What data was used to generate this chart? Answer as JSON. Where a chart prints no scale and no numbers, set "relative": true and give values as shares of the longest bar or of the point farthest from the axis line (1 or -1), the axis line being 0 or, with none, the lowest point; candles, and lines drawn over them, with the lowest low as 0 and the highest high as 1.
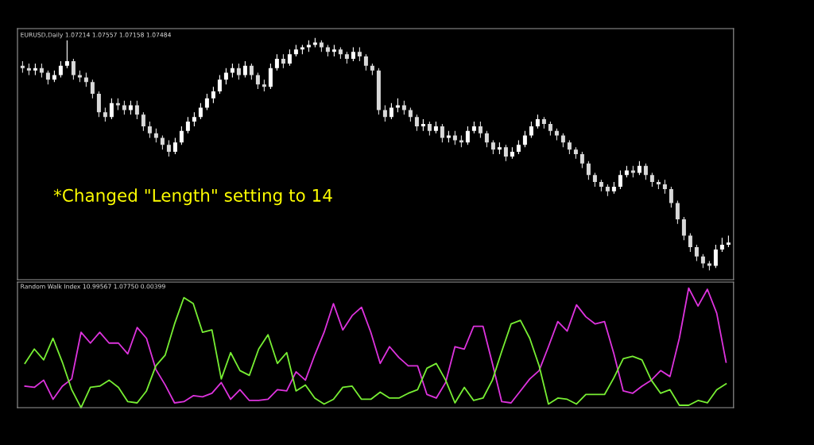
{
  "chart_data": [
    {
      "type": "candlestick",
      "title": "EURUSD,Daily 1.07214 1.07557 1.07158 1.07484",
      "annotations": [
        "*Changed \"Length\" setting to 14"
      ],
      "relative": true,
      "colors": [
        "#d9d9d9",
        "#d9d9d9",
        "#ffffff",
        "#d9d9d9",
        "#d9d9d9",
        "#ffffff",
        "#ffffff",
        "#ffffff",
        "#d9d9d9",
        "#d9d9d9",
        "#d9d9d9",
        "#d9d9d9",
        "#d9d9d9",
        "#d9d9d9",
        "#ffffff",
        "#d9d9d9",
        "#d9d9d9",
        "#ffffff",
        "#d9d9d9",
        "#d9d9d9",
        "#d9d9d9",
        "#d9d9d9",
        "#d9d9d9",
        "#d9d9d9",
        "#ffffff",
        "#ffffff",
        "#ffffff",
        "#ffffff",
        "#ffffff",
        "#ffffff",
        "#ffffff",
        "#ffffff",
        "#ffffff",
        "#ffffff",
        "#d9d9d9",
        "#ffffff",
        "#d9d9d9",
        "#d9d9d9",
        "#d9d9d9",
        "#ffffff",
        "#ffffff",
        "#d9d9d9",
        "#ffffff",
        "#ffffff",
        "#ffffff",
        "#ffffff",
        "#ffffff",
        "#d9d9d9",
        "#d9d9d9",
        "#ffffff",
        "#d9d9d9",
        "#d9d9d9",
        "#ffffff",
        "#d9d9d9",
        "#d9d9d9",
        "#d9d9d9",
        "#d9d9d9",
        "#d9d9d9",
        "#ffffff",
        "#ffffff",
        "#d9d9d9",
        "#d9d9d9",
        "#d9d9d9",
        "#ffffff",
        "#d9d9d9",
        "#ffffff",
        "#d9d9d9",
        "#ffffff",
        "#d9d9d9",
        "#d9d9d9",
        "#ffffff",
        "#ffffff",
        "#d9d9d9",
        "#d9d9d9",
        "#d9d9d9",
        "#ffffff",
        "#d9d9d9",
        "#ffffff",
        "#ffffff",
        "#ffffff",
        "#ffffff",
        "#ffffff",
        "#d9d9d9",
        "#d9d9d9",
        "#d9d9d9",
        "#d9d9d9",
        "#d9d9d9",
        "#d9d9d9",
        "#d9d9d9",
        "#d9d9d9",
        "#d9d9d9",
        "#d9d9d9",
        "#d9d9d9",
        "#ffffff",
        "#ffffff",
        "#ffffff",
        "#d9d9d9",
        "#ffffff",
        "#d9d9d9",
        "#d9d9d9",
        "#d9d9d9",
        "#d9d9d9",
        "#d9d9d9",
        "#d9d9d9",
        "#d9d9d9",
        "#d9d9d9",
        "#d9d9d9",
        "#d9d9d9",
        "#d9d9d9",
        "#ffffff",
        "#ffffff",
        "#ffffff"
      ],
      "categories": [
        null,
        null,
        null,
        null,
        null,
        null,
        null,
        null,
        null,
        null,
        null,
        null,
        null,
        null,
        null,
        null,
        null,
        null,
        null,
        null,
        null,
        null,
        null,
        null,
        null,
        null,
        null,
        null,
        null,
        null,
        null,
        null,
        null,
        null,
        null,
        null,
        null,
        null,
        null,
        null,
        null,
        null,
        null,
        null,
        null,
        null,
        null,
        null,
        null,
        null,
        null,
        null,
        null,
        null,
        null,
        null,
        null,
        null,
        null,
        null,
        null,
        null,
        null,
        null,
        null,
        null,
        null,
        null,
        null,
        null,
        null,
        null,
        null,
        null,
        null,
        null,
        null,
        null,
        null,
        null,
        null,
        null,
        null,
        null,
        null,
        null,
        null,
        null,
        null,
        null,
        null,
        null,
        null,
        null,
        null,
        null,
        null,
        null,
        null,
        null,
        null,
        null,
        null,
        null,
        null,
        null,
        null,
        null,
        null,
        null,
        null,
        null
      ],
      "ohlc": [
        [
          0.88,
          0.9,
          0.85,
          0.87
        ],
        [
          0.87,
          0.89,
          0.84,
          0.86
        ],
        [
          0.86,
          0.89,
          0.84,
          0.87
        ],
        [
          0.87,
          0.89,
          0.83,
          0.85
        ],
        [
          0.85,
          0.86,
          0.8,
          0.82
        ],
        [
          0.82,
          0.86,
          0.81,
          0.84
        ],
        [
          0.84,
          0.9,
          0.83,
          0.88
        ],
        [
          0.88,
          0.99,
          0.87,
          0.9
        ],
        [
          0.9,
          0.91,
          0.82,
          0.84
        ],
        [
          0.84,
          0.86,
          0.81,
          0.83
        ],
        [
          0.83,
          0.85,
          0.79,
          0.81
        ],
        [
          0.81,
          0.82,
          0.74,
          0.76
        ],
        [
          0.76,
          0.77,
          0.66,
          0.68
        ],
        [
          0.68,
          0.7,
          0.64,
          0.66
        ],
        [
          0.66,
          0.74,
          0.65,
          0.72
        ],
        [
          0.72,
          0.74,
          0.69,
          0.71
        ],
        [
          0.71,
          0.73,
          0.67,
          0.69
        ],
        [
          0.69,
          0.73,
          0.67,
          0.71
        ],
        [
          0.71,
          0.73,
          0.65,
          0.67
        ],
        [
          0.67,
          0.68,
          0.6,
          0.62
        ],
        [
          0.62,
          0.64,
          0.57,
          0.59
        ],
        [
          0.59,
          0.61,
          0.55,
          0.57
        ],
        [
          0.57,
          0.58,
          0.52,
          0.54
        ],
        [
          0.54,
          0.56,
          0.49,
          0.51
        ],
        [
          0.51,
          0.57,
          0.5,
          0.55
        ],
        [
          0.55,
          0.62,
          0.54,
          0.6
        ],
        [
          0.6,
          0.66,
          0.59,
          0.64
        ],
        [
          0.64,
          0.68,
          0.62,
          0.66
        ],
        [
          0.66,
          0.72,
          0.65,
          0.7
        ],
        [
          0.7,
          0.76,
          0.69,
          0.74
        ],
        [
          0.74,
          0.79,
          0.72,
          0.77
        ],
        [
          0.77,
          0.84,
          0.76,
          0.82
        ],
        [
          0.82,
          0.87,
          0.8,
          0.85
        ],
        [
          0.85,
          0.89,
          0.83,
          0.87
        ],
        [
          0.87,
          0.89,
          0.82,
          0.84
        ],
        [
          0.84,
          0.9,
          0.83,
          0.88
        ],
        [
          0.88,
          0.89,
          0.82,
          0.84
        ],
        [
          0.84,
          0.85,
          0.78,
          0.8
        ],
        [
          0.8,
          0.82,
          0.77,
          0.79
        ],
        [
          0.79,
          0.89,
          0.78,
          0.87
        ],
        [
          0.87,
          0.93,
          0.86,
          0.91
        ],
        [
          0.91,
          0.93,
          0.87,
          0.89
        ],
        [
          0.89,
          0.95,
          0.88,
          0.93
        ],
        [
          0.93,
          0.97,
          0.92,
          0.95
        ],
        [
          0.95,
          0.97,
          0.93,
          0.96
        ],
        [
          0.96,
          0.99,
          0.94,
          0.97
        ],
        [
          0.97,
          1.0,
          0.96,
          0.98
        ],
        [
          0.98,
          0.99,
          0.94,
          0.96
        ],
        [
          0.96,
          0.97,
          0.92,
          0.94
        ],
        [
          0.94,
          0.97,
          0.92,
          0.95
        ],
        [
          0.95,
          0.96,
          0.91,
          0.93
        ],
        [
          0.93,
          0.94,
          0.89,
          0.91
        ],
        [
          0.91,
          0.96,
          0.9,
          0.94
        ],
        [
          0.94,
          0.96,
          0.9,
          0.92
        ],
        [
          0.92,
          0.93,
          0.86,
          0.88
        ],
        [
          0.88,
          0.89,
          0.84,
          0.86
        ],
        [
          0.86,
          0.87,
          0.67,
          0.69
        ],
        [
          0.69,
          0.71,
          0.64,
          0.66
        ],
        [
          0.66,
          0.72,
          0.65,
          0.7
        ],
        [
          0.7,
          0.74,
          0.68,
          0.71
        ],
        [
          0.71,
          0.73,
          0.67,
          0.69
        ],
        [
          0.69,
          0.7,
          0.64,
          0.66
        ],
        [
          0.66,
          0.67,
          0.6,
          0.62
        ],
        [
          0.62,
          0.65,
          0.6,
          0.63
        ],
        [
          0.63,
          0.64,
          0.58,
          0.6
        ],
        [
          0.6,
          0.64,
          0.59,
          0.62
        ],
        [
          0.62,
          0.63,
          0.55,
          0.57
        ],
        [
          0.57,
          0.6,
          0.55,
          0.58
        ],
        [
          0.58,
          0.6,
          0.54,
          0.56
        ],
        [
          0.56,
          0.58,
          0.53,
          0.55
        ],
        [
          0.55,
          0.62,
          0.54,
          0.6
        ],
        [
          0.6,
          0.64,
          0.59,
          0.62
        ],
        [
          0.62,
          0.64,
          0.57,
          0.59
        ],
        [
          0.59,
          0.6,
          0.53,
          0.55
        ],
        [
          0.55,
          0.56,
          0.5,
          0.52
        ],
        [
          0.52,
          0.55,
          0.5,
          0.53
        ],
        [
          0.53,
          0.54,
          0.47,
          0.49
        ],
        [
          0.49,
          0.53,
          0.48,
          0.51
        ],
        [
          0.51,
          0.56,
          0.5,
          0.54
        ],
        [
          0.54,
          0.6,
          0.53,
          0.58
        ],
        [
          0.58,
          0.64,
          0.57,
          0.62
        ],
        [
          0.62,
          0.67,
          0.61,
          0.65
        ],
        [
          0.65,
          0.66,
          0.61,
          0.63
        ],
        [
          0.63,
          0.64,
          0.58,
          0.6
        ],
        [
          0.6,
          0.61,
          0.56,
          0.58
        ],
        [
          0.58,
          0.59,
          0.53,
          0.55
        ],
        [
          0.55,
          0.56,
          0.5,
          0.52
        ],
        [
          0.52,
          0.53,
          0.48,
          0.5
        ],
        [
          0.5,
          0.51,
          0.44,
          0.46
        ],
        [
          0.46,
          0.47,
          0.39,
          0.41
        ],
        [
          0.41,
          0.42,
          0.36,
          0.38
        ],
        [
          0.38,
          0.39,
          0.34,
          0.36
        ],
        [
          0.36,
          0.37,
          0.32,
          0.34
        ],
        [
          0.34,
          0.38,
          0.33,
          0.36
        ],
        [
          0.36,
          0.43,
          0.35,
          0.41
        ],
        [
          0.41,
          0.45,
          0.4,
          0.43
        ],
        [
          0.43,
          0.45,
          0.4,
          0.42
        ],
        [
          0.42,
          0.47,
          0.41,
          0.45
        ],
        [
          0.45,
          0.46,
          0.39,
          0.41
        ],
        [
          0.41,
          0.42,
          0.36,
          0.38
        ],
        [
          0.38,
          0.39,
          0.35,
          0.37
        ],
        [
          0.37,
          0.39,
          0.33,
          0.35
        ],
        [
          0.35,
          0.36,
          0.27,
          0.29
        ],
        [
          0.29,
          0.3,
          0.2,
          0.22
        ],
        [
          0.22,
          0.23,
          0.13,
          0.15
        ],
        [
          0.15,
          0.16,
          0.08,
          0.1
        ],
        [
          0.1,
          0.11,
          0.04,
          0.06
        ],
        [
          0.06,
          0.07,
          0.01,
          0.03
        ],
        [
          0.03,
          0.04,
          0.0,
          0.02
        ],
        [
          0.02,
          0.11,
          0.01,
          0.09
        ],
        [
          0.09,
          0.14,
          0.08,
          0.11
        ],
        [
          0.11,
          0.15,
          0.1,
          0.12
        ]
      ]
    },
    {
      "type": "line",
      "title": "Random Walk Index 10.99567 1.07750 0.00399",
      "relative": true,
      "categories": [
        null,
        null,
        null,
        null,
        null,
        null,
        null,
        null,
        null,
        null,
        null,
        null,
        null,
        null,
        null,
        null,
        null,
        null,
        null,
        null,
        null,
        null,
        null,
        null,
        null,
        null,
        null,
        null,
        null,
        null,
        null,
        null,
        null,
        null,
        null,
        null,
        null,
        null,
        null,
        null,
        null,
        null,
        null,
        null,
        null,
        null,
        null,
        null,
        null,
        null,
        null,
        null,
        null,
        null,
        null,
        null,
        null,
        null,
        null,
        null,
        null,
        null,
        null,
        null,
        null,
        null,
        null,
        null,
        null,
        null,
        null,
        null,
        null,
        null,
        null,
        null
      ],
      "series": [
        {
          "color": "#dd33dd",
          "values": [
            0.18,
            0.17,
            0.23,
            0.07,
            0.18,
            0.24,
            0.63,
            0.54,
            0.63,
            0.54,
            0.54,
            0.45,
            0.67,
            0.58,
            0.32,
            0.19,
            0.04,
            0.05,
            0.1,
            0.09,
            0.12,
            0.21,
            0.07,
            0.15,
            0.06,
            0.06,
            0.07,
            0.15,
            0.14,
            0.3,
            0.23,
            0.44,
            0.63,
            0.87,
            0.65,
            0.77,
            0.84,
            0.63,
            0.37,
            0.51,
            0.42,
            0.35,
            0.35,
            0.11,
            0.08,
            0.21,
            0.51,
            0.49,
            0.68,
            0.68,
            0.37,
            0.05,
            0.04,
            0.14,
            0.24,
            0.31,
            0.51,
            0.72,
            0.64,
            0.86,
            0.76,
            0.7,
            0.72,
            0.45,
            0.14,
            0.12,
            0.18,
            0.23,
            0.31,
            0.26,
            0.58,
            1.0,
            0.85,
            0.99,
            0.79,
            0.38
          ]
        },
        {
          "color": "#77ee33",
          "values": [
            0.37,
            0.49,
            0.4,
            0.58,
            0.38,
            0.15,
            0.0,
            0.17,
            0.18,
            0.23,
            0.17,
            0.05,
            0.04,
            0.14,
            0.35,
            0.44,
            0.7,
            0.92,
            0.87,
            0.63,
            0.65,
            0.24,
            0.46,
            0.31,
            0.27,
            0.49,
            0.61,
            0.37,
            0.46,
            0.14,
            0.19,
            0.08,
            0.03,
            0.07,
            0.17,
            0.18,
            0.07,
            0.07,
            0.13,
            0.08,
            0.08,
            0.12,
            0.15,
            0.33,
            0.37,
            0.23,
            0.04,
            0.17,
            0.06,
            0.08,
            0.23,
            0.47,
            0.7,
            0.73,
            0.58,
            0.35,
            0.03,
            0.08,
            0.07,
            0.03,
            0.11,
            0.11,
            0.11,
            0.25,
            0.41,
            0.43,
            0.4,
            0.23,
            0.12,
            0.15,
            0.02,
            0.02,
            0.06,
            0.04,
            0.15,
            0.2
          ]
        }
      ]
    }
  ]
}
